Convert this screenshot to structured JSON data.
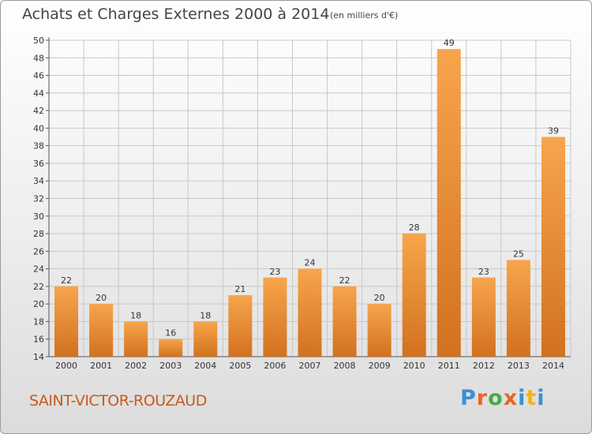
{
  "title": "Achats et Charges Externes 2000 à 2014",
  "subtitle": "(en milliers d'€)",
  "commune": "SAINT-VICTOR-ROUZAUD",
  "brand": {
    "text": "Proxiti",
    "letter_colors": [
      "#3c8ed8",
      "#e8652a",
      "#4aa84a",
      "#e8652a",
      "#3c8ed8",
      "#f2b317",
      "#3c8ed8"
    ]
  },
  "colors": {
    "bar_light": "#f7a54c",
    "bar_dark": "#d2711f",
    "grid": "#c8c8c8",
    "commune_text": "#c85a1e"
  },
  "chart_data": {
    "type": "bar",
    "title": "Achats et Charges Externes 2000 à 2014",
    "subtitle": "(en milliers d'€)",
    "categories": [
      "2000",
      "2001",
      "2002",
      "2003",
      "2004",
      "2005",
      "2006",
      "2007",
      "2008",
      "2009",
      "2010",
      "2011",
      "2012",
      "2013",
      "2014"
    ],
    "values": [
      22,
      20,
      18,
      16,
      18,
      21,
      23,
      24,
      22,
      20,
      28,
      49,
      23,
      25,
      39
    ],
    "data_labels": [
      "22",
      "20",
      "18",
      "16",
      "18",
      "21",
      "23",
      "24",
      "22",
      "20",
      "28",
      "49",
      "23",
      "25",
      "39"
    ],
    "ylim": [
      14,
      50
    ],
    "yticks": [
      14,
      16,
      18,
      20,
      22,
      24,
      26,
      28,
      30,
      32,
      34,
      36,
      38,
      40,
      42,
      44,
      46,
      48,
      50
    ],
    "xlabel": "",
    "ylabel": "",
    "grid": true
  }
}
